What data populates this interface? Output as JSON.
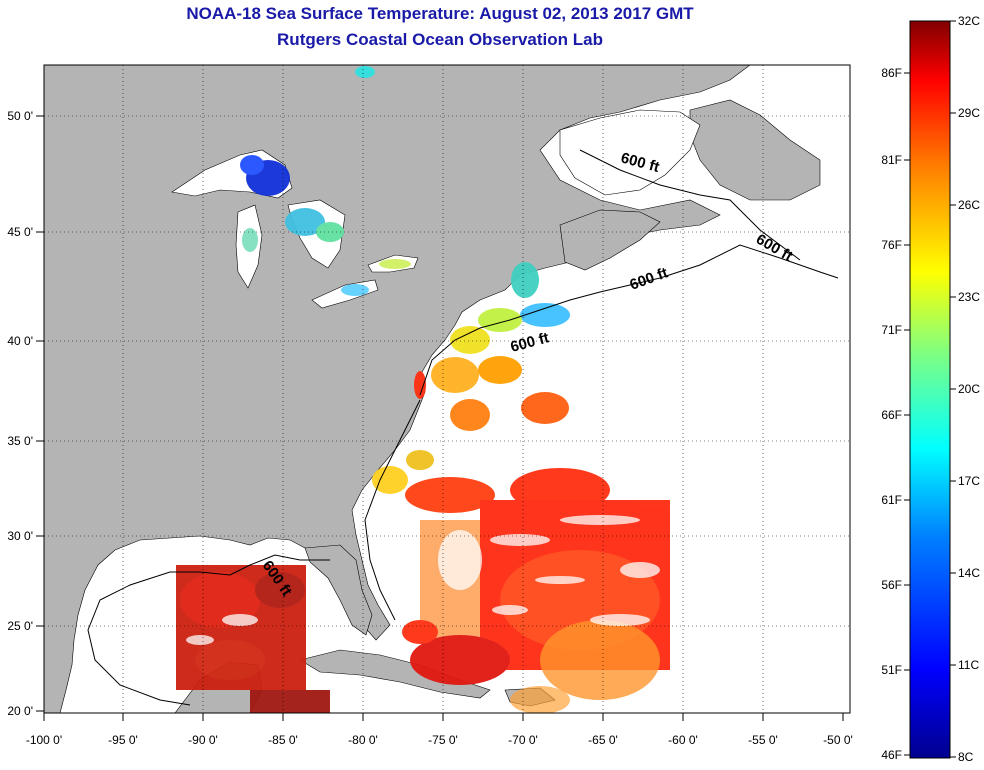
{
  "header": {
    "title": "NOAA-18 Sea Surface Temperature:  August 02, 2013 2017 GMT",
    "subtitle": "Rutgers Coastal Ocean Observation Lab"
  },
  "map": {
    "lon_ticks": [
      "-100 0'",
      "-95 0'",
      "-90 0'",
      "-85 0'",
      "-80 0'",
      "-75 0'",
      "-70 0'",
      "-65 0'",
      "-60 0'",
      "-55 0'",
      "-50 0'"
    ],
    "lat_ticks": [
      "50 0'",
      "45 0'",
      "40 0'",
      "35 0'",
      "30 0'",
      "25 0'",
      "20 0'"
    ],
    "contour_labels": [
      "600 ft",
      "600 ft",
      "600 ft",
      "600 ft",
      "600 ft"
    ],
    "colors": {
      "land": "#b4b4b4",
      "ocean": "#ffffff"
    }
  },
  "colorbar": {
    "celsius": [
      "32C",
      "29C",
      "26C",
      "23C",
      "20C",
      "17C",
      "14C",
      "11C",
      "8C"
    ],
    "fahrenheit": [
      "86F",
      "81F",
      "76F",
      "71F",
      "66F",
      "61F",
      "56F",
      "51F",
      "46F"
    ],
    "colormap": [
      "#00008f",
      "#0000ff",
      "#0080ff",
      "#00ffff",
      "#80ff80",
      "#ffff00",
      "#ff8000",
      "#ff0000",
      "#800000"
    ]
  }
}
